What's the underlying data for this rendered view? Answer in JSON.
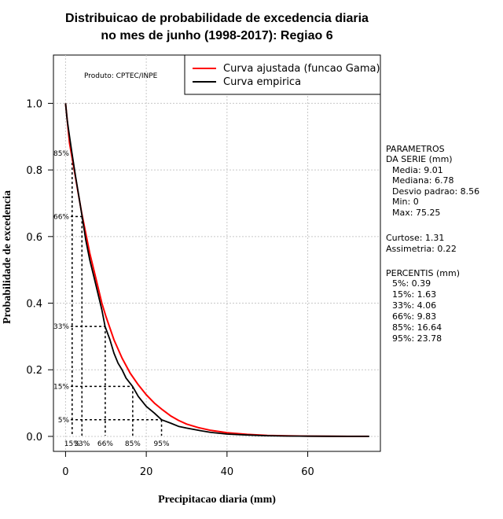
{
  "chart_data": {
    "type": "line",
    "title_line1": "Distribuicao de probabilidade de excedencia diaria",
    "title_line2": "no mes de junho (1998-2017): Regiao 6",
    "xlabel": "Precipitacao diaria (mm)",
    "ylabel": "Probabilidade de excedencia",
    "xlim": [
      -3,
      78
    ],
    "ylim": [
      -0.045,
      1.145
    ],
    "xticks": [
      0,
      20,
      40,
      60
    ],
    "yticks": [
      0.0,
      0.2,
      0.4,
      0.6,
      0.8,
      1.0
    ],
    "product_label": "Produto: CPTEC/INPE",
    "legend": {
      "position": "top-right",
      "entries": [
        {
          "label": "Curva ajustada (funcao Gama)",
          "color": "#ff0000"
        },
        {
          "label": "Curva empirica",
          "color": "#000000"
        }
      ]
    },
    "series": [
      {
        "name": "Curva ajustada (funcao Gama)",
        "color": "#ff0000",
        "x": [
          0,
          1,
          2,
          3,
          4,
          5,
          6,
          7,
          8,
          9,
          10,
          12,
          14,
          16,
          18,
          20,
          22,
          24,
          26,
          28,
          30,
          33,
          36,
          40,
          45,
          50,
          55,
          60,
          65,
          70,
          75
        ],
        "y": [
          1.0,
          0.88,
          0.81,
          0.74,
          0.67,
          0.61,
          0.55,
          0.5,
          0.45,
          0.4,
          0.36,
          0.29,
          0.235,
          0.19,
          0.155,
          0.125,
          0.1,
          0.08,
          0.062,
          0.048,
          0.037,
          0.026,
          0.018,
          0.011,
          0.006,
          0.003,
          0.0015,
          0.0008,
          0.0004,
          0.0002,
          0.0001
        ]
      },
      {
        "name": "Curva empirica",
        "color": "#000000",
        "x": [
          0,
          0.4,
          1,
          1.6,
          2.5,
          3.3,
          4.1,
          5,
          6,
          7,
          8,
          9,
          9.8,
          11,
          12,
          13,
          14,
          15,
          16.6,
          18,
          20,
          22,
          23.8,
          26,
          28,
          30,
          33,
          36,
          40,
          45,
          50,
          55,
          60,
          65,
          70,
          75.25
        ],
        "y": [
          1.0,
          0.95,
          0.9,
          0.85,
          0.78,
          0.72,
          0.66,
          0.59,
          0.53,
          0.48,
          0.43,
          0.38,
          0.33,
          0.29,
          0.25,
          0.22,
          0.2,
          0.175,
          0.15,
          0.12,
          0.09,
          0.07,
          0.05,
          0.04,
          0.03,
          0.025,
          0.018,
          0.012,
          0.007,
          0.004,
          0.002,
          0.001,
          0.0005,
          0.0003,
          0.0002,
          0.0
        ]
      }
    ],
    "percentile_markers": [
      {
        "pct_label": "5%",
        "x_label": "95%",
        "value_mm": 23.78,
        "prob": 0.05
      },
      {
        "pct_label": "15%",
        "x_label": "85%",
        "value_mm": 16.64,
        "prob": 0.15
      },
      {
        "pct_label": "33%",
        "x_label": "66%",
        "value_mm": 9.83,
        "prob": 0.33
      },
      {
        "pct_label": "66%",
        "x_label": "33%",
        "value_mm": 4.06,
        "prob": 0.66
      },
      {
        "pct_label": "85%",
        "x_label": "15%",
        "value_mm": 1.63,
        "prob": 0.85
      }
    ],
    "side_panel": {
      "params_header_1": "PARAMETROS",
      "params_header_2": "DA SERIE (mm)",
      "media": "Media: 9.01",
      "mediana": "Mediana: 6.78",
      "desvio": "Desvio padrao: 8.56",
      "min": "Min: 0",
      "max": "Max: 75.25",
      "curtose": "Curtose: 1.31",
      "assimetria": "Assimetria: 0.22",
      "percentis_header": "PERCENTIS (mm)",
      "p5": "5%: 0.39",
      "p15": "15%: 1.63",
      "p33": "33%: 4.06",
      "p66": "66%: 9.83",
      "p85": "85%: 16.64",
      "p95": "95%: 23.78"
    }
  }
}
